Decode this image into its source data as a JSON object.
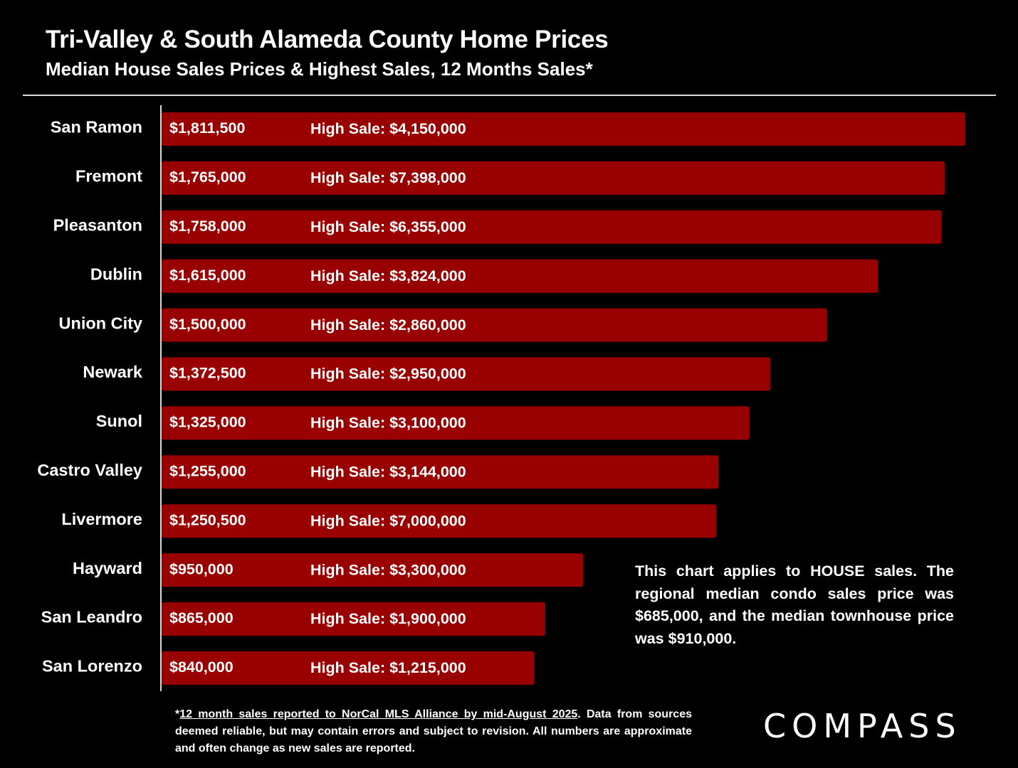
{
  "header": {
    "title": "Tri-Valley & South Alameda County Home Prices",
    "subtitle": "Median House Sales Prices & Highest Sales, 12 Months Sales*"
  },
  "colors": {
    "bar": "#990000",
    "background": "#000000",
    "text": "#ffffff"
  },
  "chart_data": {
    "type": "bar",
    "orientation": "horizontal",
    "title": "Tri-Valley & South Alameda County Home Prices",
    "subtitle": "Median House Sales Prices & Highest Sales, 12 Months Sales*",
    "xlim": [
      0,
      1811500
    ],
    "grid": false,
    "categories": [
      "San Ramon",
      "Fremont",
      "Pleasanton",
      "Dublin",
      "Union City",
      "Newark",
      "Sunol",
      "Castro Valley",
      "Livermore",
      "Hayward",
      "San Leandro",
      "San Lorenzo"
    ],
    "series": [
      {
        "values": [
          1811500,
          1765000,
          1758000,
          1615000,
          1500000,
          1372500,
          1325000,
          1255000,
          1250500,
          950000,
          865000,
          840000
        ]
      }
    ],
    "value_labels": [
      "$1,811,500",
      "$1,765,000",
      "$1,758,000",
      "$1,615,000",
      "$1,500,000",
      "$1,372,500",
      "$1,325,000",
      "$1,255,000",
      "$1,250,500",
      "$950,000",
      "$865,000",
      "$840,000"
    ],
    "high_sale_prefix": "High Sale:",
    "high_sales": [
      "$4,150,000",
      "$7,398,000",
      "$6,355,000",
      "$3,824,000",
      "$2,860,000",
      "$2,950,000",
      "$3,100,000",
      "$3,144,000",
      "$7,000,000",
      "$3,300,000",
      "$1,900,000",
      "$1,215,000"
    ]
  },
  "note": "This chart applies to HOUSE sales. The regional median condo sales price was $685,000, and the median townhouse price was $910,000.",
  "footnote": {
    "star": "*",
    "underlined": "12 month sales reported to NorCal MLS Alliance by mid-August 2025",
    "rest": ". Data from sources deemed reliable, but may contain errors and subject to revision. All numbers are approximate and often change as new sales are reported."
  },
  "logo": "COMPASS"
}
